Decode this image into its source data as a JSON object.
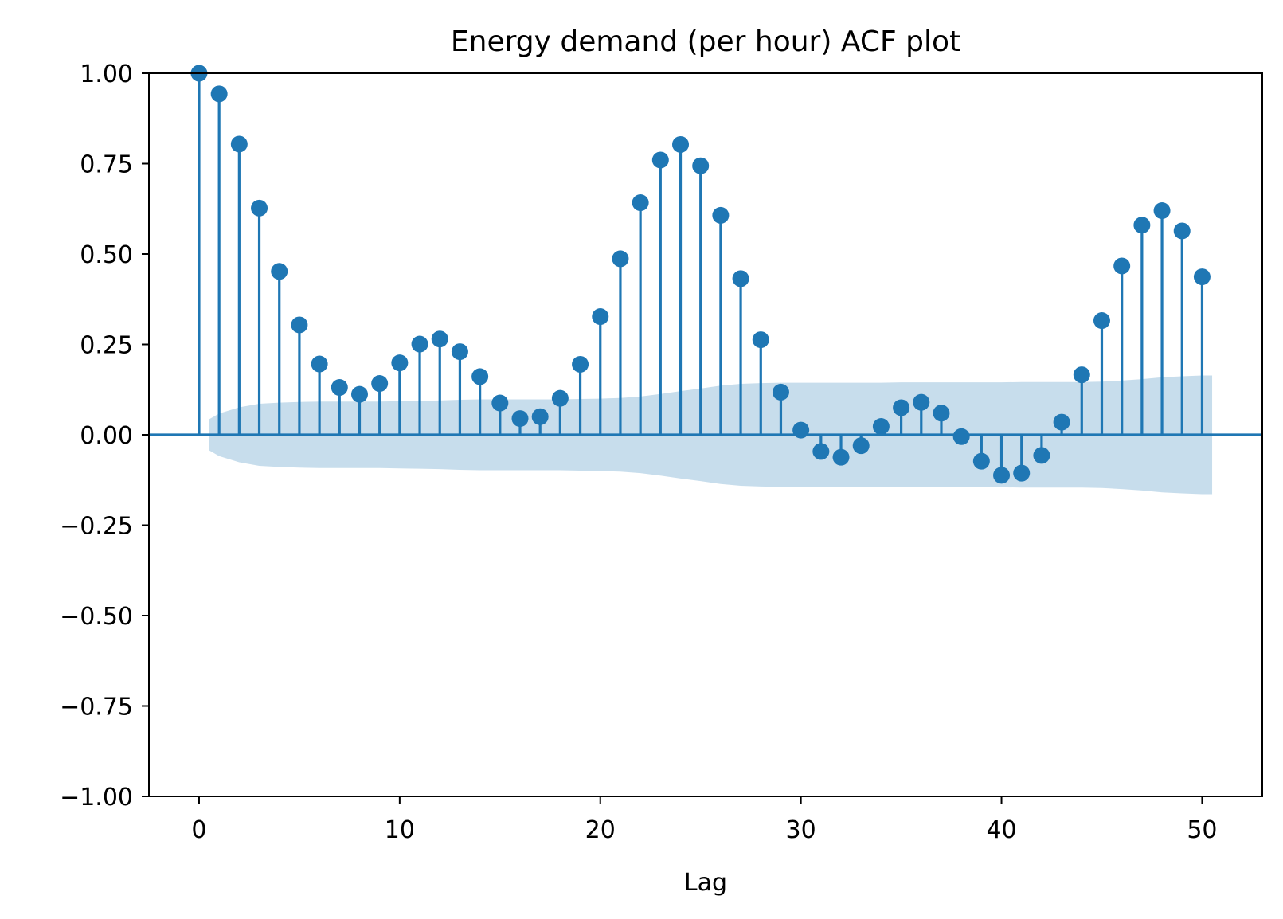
{
  "chart_data": {
    "type": "stem",
    "title": "Energy demand (per hour) ACF plot",
    "xlabel": "Lag",
    "ylabel": "",
    "xlim": [
      -2.5,
      53
    ],
    "ylim": [
      -1.0,
      1.0
    ],
    "x_ticks": [
      0,
      10,
      20,
      30,
      40,
      50
    ],
    "x_tick_labels": [
      "0",
      "10",
      "20",
      "30",
      "40",
      "50"
    ],
    "y_ticks": [
      1.0,
      0.75,
      0.5,
      0.25,
      0.0,
      -0.25,
      -0.5,
      -0.75,
      -1.0
    ],
    "y_tick_labels": [
      "1.00",
      "0.75",
      "0.50",
      "0.25",
      "0.00",
      "−0.25",
      "−0.50",
      "−0.75",
      "−1.00"
    ],
    "grid": false,
    "lags": [
      0,
      1,
      2,
      3,
      4,
      5,
      6,
      7,
      8,
      9,
      10,
      11,
      12,
      13,
      14,
      15,
      16,
      17,
      18,
      19,
      20,
      21,
      22,
      23,
      24,
      25,
      26,
      27,
      28,
      29,
      30,
      31,
      32,
      33,
      34,
      35,
      36,
      37,
      38,
      39,
      40,
      41,
      42,
      43,
      44,
      45,
      46,
      47,
      48,
      49,
      50
    ],
    "acf": [
      1.0,
      0.943,
      0.804,
      0.627,
      0.452,
      0.304,
      0.196,
      0.131,
      0.112,
      0.142,
      0.199,
      0.251,
      0.265,
      0.23,
      0.161,
      0.088,
      0.045,
      0.05,
      0.101,
      0.195,
      0.327,
      0.487,
      0.642,
      0.76,
      0.803,
      0.744,
      0.607,
      0.432,
      0.263,
      0.118,
      0.013,
      -0.046,
      -0.062,
      -0.03,
      0.023,
      0.075,
      0.09,
      0.06,
      -0.005,
      -0.073,
      -0.112,
      -0.106,
      -0.057,
      0.035,
      0.166,
      0.316,
      0.467,
      0.58,
      0.62,
      0.564,
      0.437
    ],
    "confint_x": [
      0.5,
      1,
      2,
      3,
      4,
      5,
      6,
      7,
      8,
      9,
      10,
      11,
      12,
      13,
      14,
      15,
      16,
      17,
      18,
      19,
      20,
      21,
      22,
      23,
      24,
      25,
      26,
      27,
      28,
      29,
      30,
      31,
      32,
      33,
      34,
      35,
      36,
      37,
      38,
      39,
      40,
      41,
      42,
      43,
      44,
      45,
      46,
      47,
      48,
      49,
      50,
      50.5
    ],
    "confint_upper": [
      0.043,
      0.059,
      0.076,
      0.086,
      0.089,
      0.091,
      0.092,
      0.092,
      0.092,
      0.092,
      0.093,
      0.094,
      0.095,
      0.097,
      0.098,
      0.098,
      0.098,
      0.098,
      0.098,
      0.099,
      0.1,
      0.102,
      0.106,
      0.113,
      0.121,
      0.128,
      0.136,
      0.141,
      0.143,
      0.144,
      0.144,
      0.144,
      0.144,
      0.144,
      0.144,
      0.145,
      0.145,
      0.145,
      0.145,
      0.145,
      0.145,
      0.146,
      0.146,
      0.146,
      0.146,
      0.147,
      0.15,
      0.154,
      0.159,
      0.162,
      0.164,
      0.164
    ],
    "color": "#1f77b4",
    "band_color": "#1f77b4",
    "band_opacity": 0.25
  }
}
